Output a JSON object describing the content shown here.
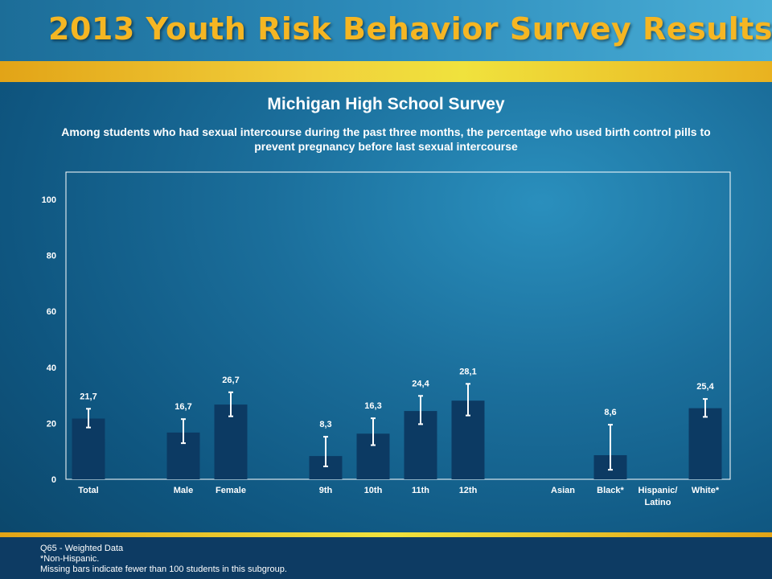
{
  "header": {
    "title": "2013 Youth Risk Behavior Survey Results"
  },
  "chart_data": {
    "type": "bar",
    "title": "Michigan High School Survey",
    "subtitle": "Among students who had sexual intercourse during the past three months, the percentage who used birth control pills to prevent pregnancy before last sexual intercourse",
    "categories": [
      "Total",
      "Male",
      "Female",
      "9th",
      "10th",
      "11th",
      "12th",
      "Asian",
      "Black*",
      "Hispanic/\nLatino",
      "White*"
    ],
    "groups": [
      [
        "Total"
      ],
      [
        "Male",
        "Female"
      ],
      [
        "9th",
        "10th",
        "11th",
        "12th"
      ],
      [
        "Asian",
        "Black*",
        "Hispanic/\nLatino",
        "White*"
      ]
    ],
    "values": [
      21.7,
      16.7,
      26.7,
      8.3,
      16.3,
      24.4,
      28.1,
      null,
      8.6,
      null,
      25.4
    ],
    "value_labels": [
      "21,7",
      "16,7",
      "26,7",
      "8,3",
      "16,3",
      "24,4",
      "28,1",
      "",
      "8,6",
      "",
      "25,4"
    ],
    "error_bars": [
      [
        18.5,
        25.2
      ],
      [
        12.9,
        21.5
      ],
      [
        22.5,
        31.1
      ],
      [
        4.6,
        15.2
      ],
      [
        12.2,
        21.8
      ],
      [
        19.7,
        29.8
      ],
      [
        22.8,
        34.1
      ],
      null,
      [
        3.4,
        19.5
      ],
      null,
      [
        22.3,
        28.7
      ]
    ],
    "ylim": [
      0,
      100
    ],
    "yticks": [
      0,
      20,
      40,
      60,
      80,
      100
    ],
    "xlabel": "",
    "ylabel": "",
    "grid": false,
    "bar_color": "#0c3a63",
    "error_bar_color": "#ffffff",
    "plot_border_color": "#ffffff"
  },
  "footer": {
    "lines": [
      "Q65 - Weighted Data",
      "*Non-Hispanic.",
      "Missing bars indicate fewer than 100 students in this subgroup."
    ]
  }
}
